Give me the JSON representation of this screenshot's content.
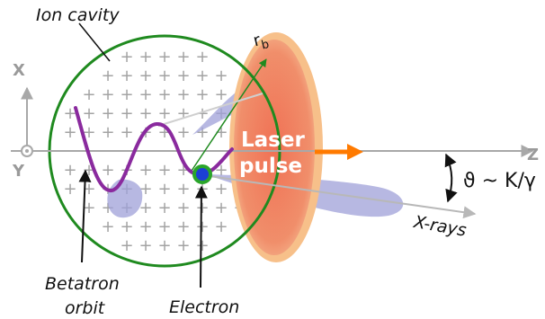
{
  "labels": {
    "ion_cavity": "Ion cavity",
    "radius": "r",
    "radius_sub": "b",
    "x_axis": "X",
    "y_axis": "Y",
    "z_axis": "Z",
    "laser_line1": "Laser",
    "laser_line2": "pulse",
    "angle": "ϑ ~ K/γ",
    "xrays": "X-rays",
    "betatron_line1": "Betatron",
    "betatron_line2": "orbit",
    "electron": "Electron"
  },
  "ion_charge_symbol": "+",
  "colors": {
    "cavity_ring": "#1f8a1f",
    "orbit": "#8a2a9e",
    "laser_fill": "#f07b5a",
    "laser_glow": "#f7c08a",
    "xray_cone": "#9fa0d8",
    "electron_core": "#1c3fd6",
    "electron_ring": "#2aa52a",
    "arrow_orange": "#ff7a00",
    "axis_gray": "#a8a8a8"
  }
}
